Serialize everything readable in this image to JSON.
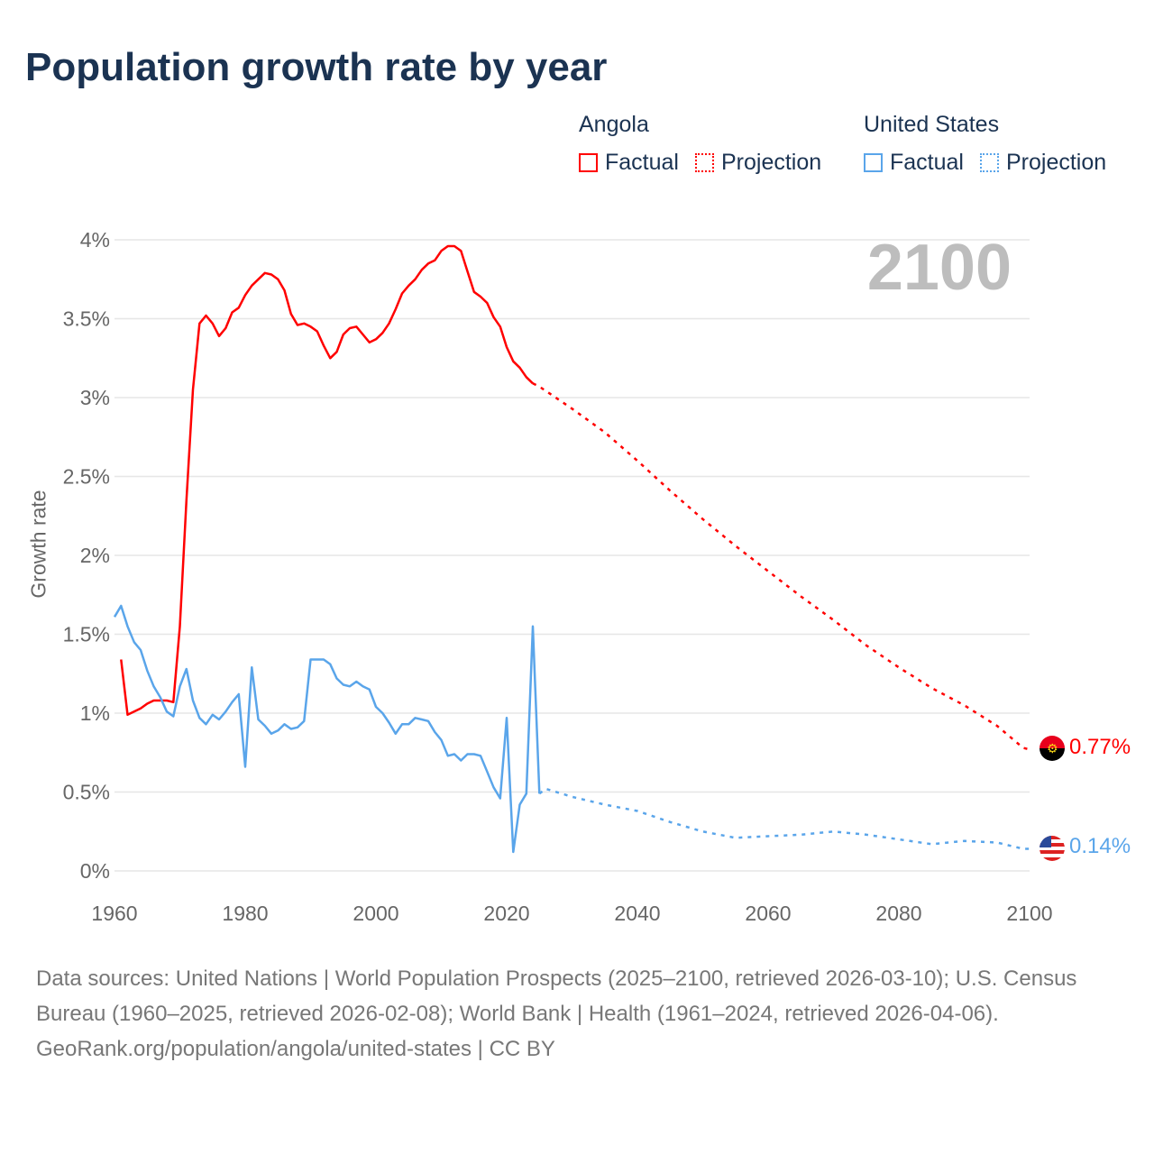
{
  "title": "Population growth rate by year",
  "current_year": "2100",
  "legend": {
    "groups": [
      {
        "country": "Angola",
        "factual": "Factual",
        "projection": "Projection"
      },
      {
        "country": "United States",
        "factual": "Factual",
        "projection": "Projection"
      }
    ]
  },
  "colors": {
    "angola": "#ff0000",
    "us": "#5aa5ea",
    "title": "#1b3352",
    "grid": "#e6e6e6"
  },
  "end_labels": {
    "angola": "0.77%",
    "us": "0.14%"
  },
  "flags": {
    "angola": "angola-flag-icon",
    "us": "us-flag-icon"
  },
  "footer": {
    "sources": "Data sources: United Nations | World Population Prospects (2025–2100, retrieved 2026-03-10); U.S. Census Bureau (1960–2025, retrieved 2026-02-08); World Bank | Health (1961–2024, retrieved 2026-04-06).",
    "credit": "GeoRank.org/population/angola/united-states | CC BY"
  },
  "chart_data": {
    "type": "line",
    "title": "Population growth rate by year",
    "xlabel": "",
    "ylabel": "Growth rate",
    "xlim": [
      1960,
      2100
    ],
    "ylim": [
      0,
      4
    ],
    "x_ticks": [
      "1960",
      "1980",
      "2000",
      "2020",
      "2040",
      "2060",
      "2080",
      "2100"
    ],
    "x_tick_values": [
      1960,
      1980,
      2000,
      2020,
      2040,
      2060,
      2080,
      2100
    ],
    "y_ticks": [
      "0%",
      "0.5%",
      "1%",
      "1.5%",
      "2%",
      "2.5%",
      "3%",
      "3.5%",
      "4%"
    ],
    "y_tick_values": [
      0,
      0.5,
      1,
      1.5,
      2,
      2.5,
      3,
      3.5,
      4
    ],
    "grid": true,
    "legend_position": "top-right",
    "series": [
      {
        "name": "Angola Factual",
        "style": "solid",
        "color": "#ff0000",
        "x": [
          1961,
          1962,
          1963,
          1964,
          1965,
          1966,
          1967,
          1968,
          1969,
          1970,
          1971,
          1972,
          1973,
          1974,
          1975,
          1976,
          1977,
          1978,
          1979,
          1980,
          1981,
          1982,
          1983,
          1984,
          1985,
          1986,
          1987,
          1988,
          1989,
          1990,
          1991,
          1992,
          1993,
          1994,
          1995,
          1996,
          1997,
          1998,
          1999,
          2000,
          2001,
          2002,
          2003,
          2004,
          2005,
          2006,
          2007,
          2008,
          2009,
          2010,
          2011,
          2012,
          2013,
          2014,
          2015,
          2016,
          2017,
          2018,
          2019,
          2020,
          2021,
          2022,
          2023,
          2024
        ],
        "y": [
          1.34,
          0.99,
          1.01,
          1.03,
          1.06,
          1.08,
          1.08,
          1.08,
          1.07,
          1.55,
          2.35,
          3.05,
          3.47,
          3.52,
          3.47,
          3.39,
          3.44,
          3.54,
          3.57,
          3.65,
          3.71,
          3.75,
          3.79,
          3.78,
          3.75,
          3.68,
          3.53,
          3.46,
          3.47,
          3.45,
          3.42,
          3.33,
          3.25,
          3.29,
          3.4,
          3.44,
          3.45,
          3.4,
          3.35,
          3.37,
          3.41,
          3.47,
          3.56,
          3.66,
          3.71,
          3.75,
          3.81,
          3.85,
          3.87,
          3.93,
          3.96,
          3.96,
          3.93,
          3.8,
          3.67,
          3.64,
          3.6,
          3.51,
          3.45,
          3.32,
          3.23,
          3.19,
          3.13,
          3.09
        ]
      },
      {
        "name": "Angola Projection",
        "style": "dotted",
        "color": "#ff0000",
        "x": [
          2024,
          2025,
          2030,
          2035,
          2040,
          2045,
          2050,
          2055,
          2060,
          2065,
          2070,
          2075,
          2080,
          2085,
          2090,
          2095,
          2099,
          2100
        ],
        "y": [
          3.09,
          3.07,
          2.93,
          2.78,
          2.6,
          2.41,
          2.23,
          2.06,
          1.9,
          1.74,
          1.59,
          1.43,
          1.29,
          1.16,
          1.05,
          0.92,
          0.78,
          0.77
        ]
      },
      {
        "name": "United States Factual",
        "style": "solid",
        "color": "#5aa5ea",
        "x": [
          1960,
          1961,
          1962,
          1963,
          1964,
          1965,
          1966,
          1967,
          1968,
          1969,
          1970,
          1971,
          1972,
          1973,
          1974,
          1975,
          1976,
          1977,
          1978,
          1979,
          1980,
          1981,
          1982,
          1983,
          1984,
          1985,
          1986,
          1987,
          1988,
          1989,
          1990,
          1991,
          1992,
          1993,
          1994,
          1995,
          1996,
          1997,
          1998,
          1999,
          2000,
          2001,
          2002,
          2003,
          2004,
          2005,
          2006,
          2007,
          2008,
          2009,
          2010,
          2011,
          2012,
          2013,
          2014,
          2015,
          2016,
          2017,
          2018,
          2019,
          2020,
          2021,
          2022,
          2023,
          2024,
          2025
        ],
        "y": [
          1.61,
          1.68,
          1.55,
          1.45,
          1.4,
          1.27,
          1.17,
          1.1,
          1.01,
          0.98,
          1.17,
          1.28,
          1.08,
          0.97,
          0.93,
          0.99,
          0.96,
          1.01,
          1.07,
          1.12,
          0.66,
          1.29,
          0.96,
          0.92,
          0.87,
          0.89,
          0.93,
          0.9,
          0.91,
          0.95,
          1.34,
          1.34,
          1.34,
          1.31,
          1.22,
          1.18,
          1.17,
          1.2,
          1.17,
          1.15,
          1.04,
          1.0,
          0.94,
          0.87,
          0.93,
          0.93,
          0.97,
          0.96,
          0.95,
          0.88,
          0.83,
          0.73,
          0.74,
          0.7,
          0.74,
          0.74,
          0.73,
          0.63,
          0.53,
          0.46,
          0.97,
          0.12,
          0.42,
          0.49,
          1.55,
          0.49
        ]
      },
      {
        "name": "United States Projection",
        "style": "dotted",
        "color": "#5aa5ea",
        "x": [
          2025,
          2026,
          2030,
          2035,
          2040,
          2045,
          2050,
          2055,
          2060,
          2065,
          2070,
          2075,
          2080,
          2085,
          2090,
          2095,
          2099,
          2100
        ],
        "y": [
          0.49,
          0.52,
          0.47,
          0.42,
          0.38,
          0.31,
          0.25,
          0.21,
          0.22,
          0.23,
          0.25,
          0.23,
          0.2,
          0.17,
          0.19,
          0.18,
          0.14,
          0.14
        ]
      }
    ]
  }
}
